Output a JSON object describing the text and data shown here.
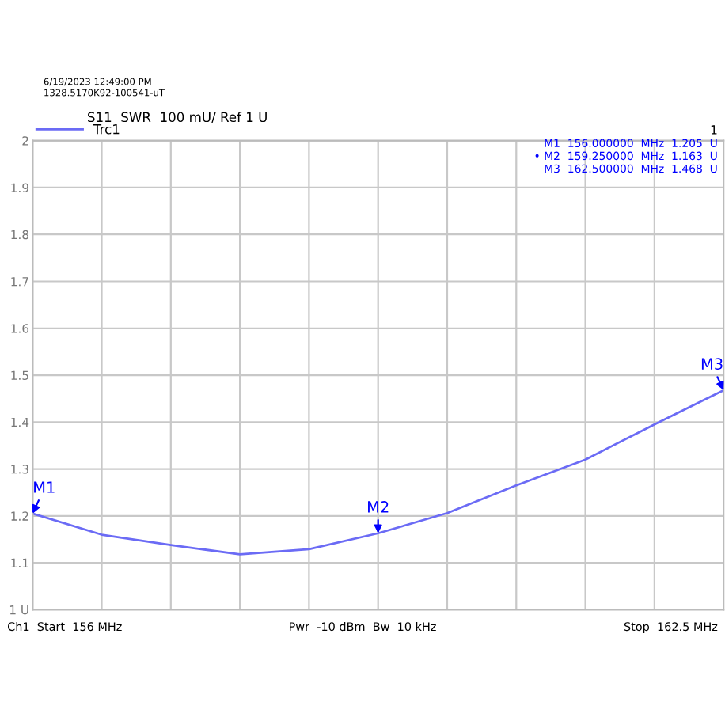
{
  "chart_data": {
    "type": "line",
    "title": "S11  SWR  100 mU/ Ref 1 U",
    "subtitle": "6/19/2023 12:49:00 PM\n1328.5170K92-100541-uT",
    "categories": [
      null,
      null,
      null,
      null,
      null,
      null,
      null,
      null,
      null,
      null,
      null
    ],
    "series": [
      {
        "name": "Trc1",
        "color": "#6b6bf5",
        "values": [
          1.205,
          1.16,
          1.138,
          1.118,
          1.129,
          1.163,
          1.206,
          1.265,
          1.32,
          1.395,
          1.468
        ]
      }
    ],
    "ylim": [
      1,
      2
    ],
    "yticks": [
      {
        "value": 1,
        "label": "1 U"
      },
      {
        "value": 1.1,
        "label": "1.1"
      },
      {
        "value": 1.2,
        "label": "1.2"
      },
      {
        "value": 1.3,
        "label": "1.3"
      },
      {
        "value": 1.4,
        "label": "1.4"
      },
      {
        "value": 1.5,
        "label": "1.5"
      },
      {
        "value": 1.6,
        "label": "1.6"
      },
      {
        "value": 1.7,
        "label": "1.7"
      },
      {
        "value": 1.8,
        "label": "1.8"
      },
      {
        "value": 1.9,
        "label": "1.9"
      },
      {
        "value": 2,
        "label": "2"
      }
    ],
    "tick_labels": "y",
    "grid": true,
    "legend": "top left",
    "marker": "none",
    "line_style": "solid",
    "ref_lines": [
      {
        "axis": "y",
        "value": 1,
        "line_style": "dashed",
        "color": "#0000ff"
      }
    ],
    "annotations": [
      "1",
      "M1  156.000000  MHz  1.205  U\n• M2  159.250000  MHz  1.163  U\nM3  162.500000  MHz  1.468  U",
      {
        "text": "M1",
        "y": 1.205
      },
      {
        "text": "M2",
        "y": 1.163
      },
      {
        "text": "M3",
        "y": 1.468
      },
      "Ch1  Start  156 MHz",
      "Pwr  -10 dBm  Bw  10 kHz",
      "Stop  162.5 MHz"
    ]
  }
}
